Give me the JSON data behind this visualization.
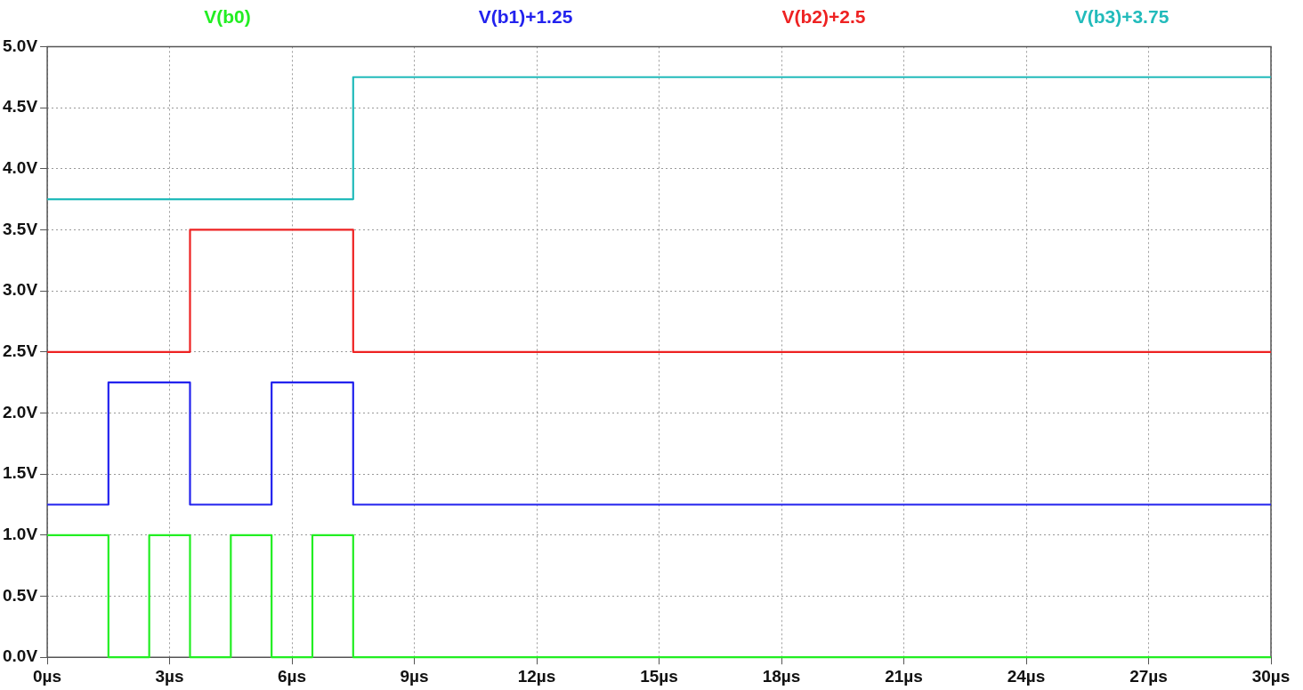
{
  "chart_data": {
    "type": "step",
    "legend": "top",
    "grid": true,
    "line_style": "solid",
    "marker": "none",
    "xlim": [
      0,
      30
    ],
    "xticks": [
      {
        "value": 0,
        "label": "0µs"
      },
      {
        "value": 3,
        "label": "3µs"
      },
      {
        "value": 6,
        "label": "6µs"
      },
      {
        "value": 9,
        "label": "9µs"
      },
      {
        "value": 12,
        "label": "12µs"
      },
      {
        "value": 15,
        "label": "15µs"
      },
      {
        "value": 18,
        "label": "18µs"
      },
      {
        "value": 21,
        "label": "21µs"
      },
      {
        "value": 24,
        "label": "24µs"
      },
      {
        "value": 27,
        "label": "27µs"
      },
      {
        "value": 30,
        "label": "30µs"
      }
    ],
    "ylim": [
      0,
      5
    ],
    "yticks": [
      {
        "value": 0,
        "label": "0.0V"
      },
      {
        "value": 0.5,
        "label": "0.5V"
      },
      {
        "value": 1,
        "label": "1.0V"
      },
      {
        "value": 1.5,
        "label": "1.5V"
      },
      {
        "value": 2,
        "label": "2.0V"
      },
      {
        "value": 2.5,
        "label": "2.5V"
      },
      {
        "value": 3,
        "label": "3.0V"
      },
      {
        "value": 3.5,
        "label": "3.5V"
      },
      {
        "value": 4,
        "label": "4.0V"
      },
      {
        "value": 4.5,
        "label": "4.5V"
      },
      {
        "value": 5,
        "label": "5.0V"
      }
    ],
    "series": [
      {
        "name": "V(b0)",
        "color": "#22ee22",
        "x": [
          0,
          1.5,
          2.5,
          3.5,
          4.5,
          5.5,
          6.5,
          7.5,
          30
        ],
        "values": [
          1,
          0,
          1,
          0,
          1,
          0,
          1,
          0,
          0
        ]
      },
      {
        "name": "V(b1)+1.25",
        "color": "#2222ee",
        "x": [
          0,
          1.5,
          3.5,
          5.5,
          7.5,
          30
        ],
        "values": [
          1.25,
          2.25,
          1.25,
          2.25,
          1.25,
          1.25
        ]
      },
      {
        "name": "V(b2)+2.5",
        "color": "#ee2222",
        "x": [
          0,
          3.5,
          7.5,
          30
        ],
        "values": [
          2.5,
          3.5,
          2.5,
          2.5
        ]
      },
      {
        "name": "V(b3)+3.75",
        "color": "#22bbbb",
        "x": [
          0,
          7.5,
          30
        ],
        "values": [
          3.75,
          4.75,
          4.75
        ]
      }
    ]
  }
}
